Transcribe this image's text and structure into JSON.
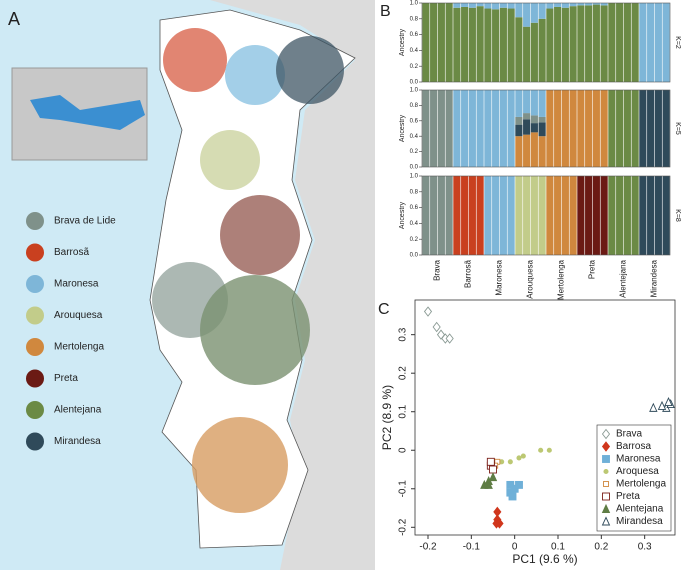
{
  "map": {
    "label": "A",
    "legend": [
      {
        "name": "Brava de Lide",
        "color": "#7f918a"
      },
      {
        "name": "Barrosã",
        "color": "#c9401f"
      },
      {
        "name": "Maronesa",
        "color": "#7eb6d8"
      },
      {
        "name": "Arouquesa",
        "color": "#c2cc8a"
      },
      {
        "name": "Mertolenga",
        "color": "#d0883e"
      },
      {
        "name": "Preta",
        "color": "#6b1a14"
      },
      {
        "name": "Alentejana",
        "color": "#6b8a45"
      },
      {
        "name": "Mirandesa",
        "color": "#2f4a5a"
      }
    ]
  },
  "panel_b_label": "B",
  "chart_data": [
    {
      "type": "ancestry",
      "title": "K=2",
      "y_label": "Ancestry",
      "ylim": [
        0,
        1
      ],
      "yticks": [
        {
          "value": 0,
          "label": "0.0"
        },
        0.2,
        0.4,
        0.6,
        0.8,
        {
          "value": 1,
          "label": "1.0"
        }
      ],
      "series": [
        {
          "color": "#6b8a45",
          "values": [
            [
              1,
              1,
              1,
              1
            ],
            [
              0.94,
              0.95,
              0.94,
              0.96
            ],
            [
              0.93,
              0.92,
              0.94,
              0.93
            ],
            [
              0.82,
              0.7,
              0.75,
              0.8
            ],
            [
              0.93,
              0.95,
              0.94,
              0.96
            ],
            [
              0.97,
              0.97,
              0.98,
              0.97
            ],
            [
              1,
              1,
              1,
              1
            ],
            [
              0,
              0,
              0,
              0
            ]
          ]
        },
        {
          "color": "#7eb6d8",
          "values": [
            [
              0,
              0,
              0,
              0
            ],
            [
              0.06,
              0.05,
              0.06,
              0.04
            ],
            [
              0.07,
              0.08,
              0.06,
              0.07
            ],
            [
              0.18,
              0.3,
              0.25,
              0.2
            ],
            [
              0.07,
              0.05,
              0.06,
              0.04
            ],
            [
              0.03,
              0.03,
              0.02,
              0.03
            ],
            [
              0,
              0,
              0,
              0
            ],
            [
              1,
              1,
              1,
              1
            ]
          ]
        }
      ]
    },
    {
      "type": "ancestry",
      "title": "K=5",
      "y_label": "Ancestry",
      "ylim": [
        0,
        1
      ],
      "yticks": [
        {
          "value": 0,
          "label": "0.0"
        },
        0.2,
        0.4,
        0.6,
        0.8,
        {
          "value": 1,
          "label": "1.0"
        }
      ],
      "series": [
        {
          "color": "#d0883e",
          "values": [
            [
              0,
              0,
              0,
              0
            ],
            [
              0,
              0,
              0,
              0
            ],
            [
              0,
              0,
              0,
              0
            ],
            [
              0.4,
              0.42,
              0.45,
              0.4
            ],
            [
              1,
              1,
              1,
              1
            ],
            [
              1,
              1,
              1,
              1
            ],
            [
              0,
              0,
              0,
              0
            ],
            [
              0,
              0,
              0,
              0
            ]
          ]
        },
        {
          "color": "#2f4a5a",
          "values": [
            [
              0,
              0,
              0,
              0
            ],
            [
              0,
              0,
              0,
              0
            ],
            [
              0,
              0,
              0,
              0
            ],
            [
              0.15,
              0.2,
              0.12,
              0.18
            ],
            [
              0,
              0,
              0,
              0
            ],
            [
              0,
              0,
              0,
              0
            ],
            [
              0,
              0,
              0,
              0
            ],
            [
              1,
              1,
              1,
              1
            ]
          ]
        },
        {
          "color": "#7f918a",
          "values": [
            [
              1,
              1,
              1,
              1
            ],
            [
              0,
              0,
              0,
              0
            ],
            [
              0,
              0,
              0,
              0
            ],
            [
              0.1,
              0.08,
              0.1,
              0.07
            ],
            [
              0,
              0,
              0,
              0
            ],
            [
              0,
              0,
              0,
              0
            ],
            [
              0,
              0,
              0,
              0
            ],
            [
              0,
              0,
              0,
              0
            ]
          ]
        },
        {
          "color": "#7eb6d8",
          "values": [
            [
              0,
              0,
              0,
              0
            ],
            [
              1,
              1,
              1,
              1
            ],
            [
              1,
              1,
              1,
              1
            ],
            [
              0.35,
              0.3,
              0.33,
              0.35
            ],
            [
              0,
              0,
              0,
              0
            ],
            [
              0,
              0,
              0,
              0
            ],
            [
              0,
              0,
              0,
              0
            ],
            [
              0,
              0,
              0,
              0
            ]
          ]
        },
        {
          "color": "#6b8a45",
          "values": [
            [
              0,
              0,
              0,
              0
            ],
            [
              0,
              0,
              0,
              0
            ],
            [
              0,
              0,
              0,
              0
            ],
            [
              0,
              0,
              0,
              0
            ],
            [
              0,
              0,
              0,
              0
            ],
            [
              0,
              0,
              0,
              0
            ],
            [
              1,
              1,
              1,
              1
            ],
            [
              0,
              0,
              0,
              0
            ]
          ]
        }
      ]
    },
    {
      "type": "ancestry",
      "title": "K=8",
      "y_label": "Ancestry",
      "ylim": [
        0,
        1
      ],
      "yticks": [
        {
          "value": 0,
          "label": "0.0"
        },
        0.2,
        0.4,
        0.6,
        0.8,
        {
          "value": 1,
          "label": "1.0"
        }
      ],
      "categories": [
        "Brava",
        "Barrosã",
        "Maronesa",
        "Arouquesa",
        "Mertolenga",
        "Preta",
        "Alentejana",
        "Mirandesa"
      ],
      "series": [
        {
          "color": "#7f918a",
          "values": [
            [
              1,
              1,
              1,
              1
            ],
            [
              0,
              0,
              0,
              0
            ],
            [
              0,
              0,
              0,
              0
            ],
            [
              0,
              0,
              0,
              0
            ],
            [
              0,
              0,
              0,
              0
            ],
            [
              0,
              0,
              0,
              0
            ],
            [
              0,
              0,
              0,
              0
            ],
            [
              0,
              0,
              0,
              0
            ]
          ]
        },
        {
          "color": "#c9401f",
          "values": [
            [
              0,
              0,
              0,
              0
            ],
            [
              1,
              1,
              1,
              1
            ],
            [
              0,
              0,
              0,
              0
            ],
            [
              0,
              0,
              0,
              0
            ],
            [
              0,
              0,
              0,
              0
            ],
            [
              0,
              0,
              0,
              0
            ],
            [
              0,
              0,
              0,
              0
            ],
            [
              0,
              0,
              0,
              0
            ]
          ]
        },
        {
          "color": "#7eb6d8",
          "values": [
            [
              0,
              0,
              0,
              0
            ],
            [
              0,
              0,
              0,
              0
            ],
            [
              1,
              1,
              1,
              1
            ],
            [
              0,
              0,
              0,
              0
            ],
            [
              0,
              0,
              0,
              0
            ],
            [
              0,
              0,
              0,
              0
            ],
            [
              0,
              0,
              0,
              0
            ],
            [
              0,
              0,
              0,
              0
            ]
          ]
        },
        {
          "color": "#c2cc8a",
          "values": [
            [
              0,
              0,
              0,
              0
            ],
            [
              0,
              0,
              0,
              0
            ],
            [
              0,
              0,
              0,
              0
            ],
            [
              1,
              1,
              1,
              1
            ],
            [
              0,
              0,
              0,
              0
            ],
            [
              0,
              0,
              0,
              0
            ],
            [
              0,
              0,
              0,
              0
            ],
            [
              0,
              0,
              0,
              0
            ]
          ]
        },
        {
          "color": "#d0883e",
          "values": [
            [
              0,
              0,
              0,
              0
            ],
            [
              0,
              0,
              0,
              0
            ],
            [
              0,
              0,
              0,
              0
            ],
            [
              0,
              0,
              0,
              0
            ],
            [
              1,
              1,
              1,
              1
            ],
            [
              0,
              0,
              0,
              0
            ],
            [
              0,
              0,
              0,
              0
            ],
            [
              0,
              0,
              0,
              0
            ]
          ]
        },
        {
          "color": "#6b1a14",
          "values": [
            [
              0,
              0,
              0,
              0
            ],
            [
              0,
              0,
              0,
              0
            ],
            [
              0,
              0,
              0,
              0
            ],
            [
              0,
              0,
              0,
              0
            ],
            [
              0,
              0,
              0,
              0
            ],
            [
              1,
              1,
              1,
              1
            ],
            [
              0,
              0,
              0,
              0
            ],
            [
              0,
              0,
              0,
              0
            ]
          ]
        },
        {
          "color": "#6b8a45",
          "values": [
            [
              0,
              0,
              0,
              0
            ],
            [
              0,
              0,
              0,
              0
            ],
            [
              0,
              0,
              0,
              0
            ],
            [
              0,
              0,
              0,
              0
            ],
            [
              0,
              0,
              0,
              0
            ],
            [
              0,
              0,
              0,
              0
            ],
            [
              1,
              1,
              1,
              1
            ],
            [
              0,
              0,
              0,
              0
            ]
          ]
        },
        {
          "color": "#2f4a5a",
          "values": [
            [
              0,
              0,
              0,
              0
            ],
            [
              0,
              0,
              0,
              0
            ],
            [
              0,
              0,
              0,
              0
            ],
            [
              0,
              0,
              0,
              0
            ],
            [
              0,
              0,
              0,
              0
            ],
            [
              0,
              0,
              0,
              0
            ],
            [
              0,
              0,
              0,
              0
            ],
            [
              1,
              1,
              1,
              1
            ]
          ]
        }
      ]
    },
    {
      "type": "scatter",
      "label": "C",
      "x_label": "PC1 (9.6 %)",
      "y_label": "PC2 (8.9 %)",
      "xlim": [
        -0.23,
        0.37
      ],
      "ylim": [
        -0.22,
        0.39
      ],
      "xticks": [
        -0.2,
        -0.1,
        0,
        0.1,
        0.2,
        0.3
      ],
      "yticks": [
        -0.2,
        -0.1,
        0,
        0.1,
        0.2,
        0.3
      ],
      "legend": "lower right",
      "series": [
        {
          "name": "Brava",
          "color": "#8a9a94",
          "marker": "diamond-open",
          "x": [
            -0.2,
            -0.18,
            -0.17,
            -0.16,
            -0.15
          ],
          "y": [
            0.36,
            0.32,
            0.3,
            0.29,
            0.29
          ]
        },
        {
          "name": "Barrosa",
          "color": "#d0361c",
          "marker": "diamond",
          "x": [
            -0.04,
            -0.04,
            -0.035,
            -0.042
          ],
          "y": [
            -0.16,
            -0.18,
            -0.19,
            -0.19
          ]
        },
        {
          "name": "Maronesa",
          "color": "#6fb0d8",
          "marker": "square",
          "x": [
            -0.01,
            -0.01,
            0,
            0.01,
            -0.005
          ],
          "y": [
            -0.09,
            -0.11,
            -0.1,
            -0.09,
            -0.12
          ]
        },
        {
          "name": "Aroquesa",
          "color": "#bcc873",
          "marker": "circle",
          "x": [
            -0.03,
            -0.01,
            0.01,
            0.02,
            0.06,
            0.08
          ],
          "y": [
            -0.03,
            -0.03,
            -0.02,
            -0.015,
            0,
            0
          ]
        },
        {
          "name": "Mertolenga",
          "color": "#d0883e",
          "marker": "square-open-small",
          "x": [
            -0.05,
            -0.04,
            -0.045
          ],
          "y": [
            -0.03,
            -0.03,
            -0.04
          ]
        },
        {
          "name": "Preta",
          "color": "#7a1e18",
          "marker": "square-open",
          "x": [
            -0.055,
            -0.05,
            -0.055
          ],
          "y": [
            -0.04,
            -0.05,
            -0.03
          ]
        },
        {
          "name": "Alentejana",
          "color": "#5f7d45",
          "marker": "triangle",
          "x": [
            -0.07,
            -0.06,
            -0.05,
            -0.06
          ],
          "y": [
            -0.09,
            -0.08,
            -0.07,
            -0.09
          ]
        },
        {
          "name": "Mirandesa",
          "color": "#2f4a5a",
          "marker": "triangle-open",
          "x": [
            0.32,
            0.35,
            0.36,
            0.355,
            0.34
          ],
          "y": [
            0.11,
            0.11,
            0.12,
            0.125,
            0.115
          ]
        }
      ]
    }
  ]
}
